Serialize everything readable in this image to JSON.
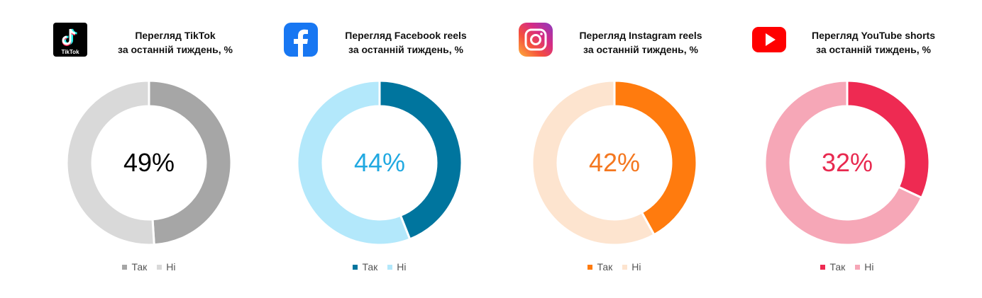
{
  "legend": {
    "yes": "Так",
    "no": "Ні"
  },
  "chart_data": [
    {
      "type": "pie",
      "title": [
        "Перегляд TikTok",
        "за останній тиждень, %"
      ],
      "categories": [
        "Так",
        "Ні"
      ],
      "values": [
        49,
        51
      ],
      "center_label": "49%",
      "colors": [
        "#A6A6A6",
        "#D9D9D9"
      ],
      "center_color": "#000000",
      "logo": "tiktok-icon"
    },
    {
      "type": "pie",
      "title": [
        "Перегляд Facebook reels",
        "за останній тиждень, %"
      ],
      "categories": [
        "Так",
        "Ні"
      ],
      "values": [
        44,
        56
      ],
      "center_label": "44%",
      "colors": [
        "#00759E",
        "#B3E8FB"
      ],
      "center_color": "#21A9E1",
      "logo": "facebook-icon"
    },
    {
      "type": "pie",
      "title": [
        "Перегляд Instagram reels",
        "за останній тиждень, %"
      ],
      "categories": [
        "Так",
        "Ні"
      ],
      "values": [
        42,
        58
      ],
      "center_label": "42%",
      "colors": [
        "#FF7B0E",
        "#FDE4CF"
      ],
      "center_color": "#F4771F",
      "logo": "instagram-icon"
    },
    {
      "type": "pie",
      "title": [
        "Перегляд YouTube shorts",
        "за останній тиждень, %"
      ],
      "categories": [
        "Так",
        "Ні"
      ],
      "values": [
        32,
        68
      ],
      "center_label": "32%",
      "colors": [
        "#EE2A52",
        "#F6A7B7"
      ],
      "center_color": "#E8294F",
      "logo": "youtube-icon"
    }
  ]
}
